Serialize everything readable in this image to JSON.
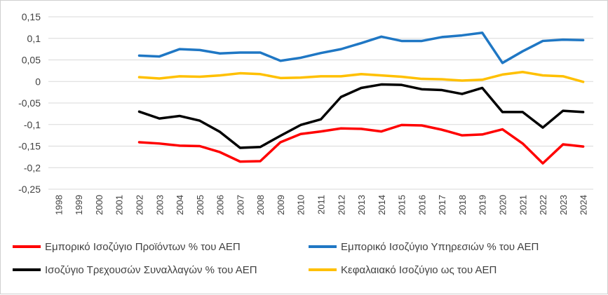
{
  "chart_data": {
    "type": "line",
    "x": [
      "1998",
      "1999",
      "2000",
      "2001",
      "2002",
      "2003",
      "2004",
      "2005",
      "2006",
      "2007",
      "2008",
      "2009",
      "2010",
      "2011",
      "2012",
      "2013",
      "2014",
      "2015",
      "2016",
      "2017",
      "2018",
      "2019",
      "2020",
      "2021",
      "2022",
      "2023",
      "2024"
    ],
    "ylim": [
      -0.25,
      0.15
    ],
    "yticks": [
      0.15,
      0.1,
      0.05,
      0,
      -0.05,
      -0.1,
      -0.15,
      -0.2,
      -0.25
    ],
    "ytick_labels": [
      "0,15",
      "0,1",
      "0,05",
      "0",
      "-0,05",
      "-0,1",
      "-0,15",
      "-0,2",
      "-0,25"
    ],
    "grid": "horizontal",
    "legend_position": "bottom",
    "series": [
      {
        "name": "Εμπορικό Ισοζύγιο Προϊόντων % του ΑΕΠ",
        "color": "#ff0000",
        "values": [
          null,
          null,
          null,
          null,
          -0.141,
          -0.144,
          -0.149,
          -0.15,
          -0.164,
          -0.186,
          -0.185,
          -0.141,
          -0.122,
          -0.116,
          -0.109,
          -0.11,
          -0.116,
          -0.101,
          -0.102,
          -0.112,
          -0.125,
          -0.123,
          -0.111,
          -0.144,
          -0.19,
          -0.146,
          -0.151
        ]
      },
      {
        "name": "Εμπορικό Ισοζύγιο Υπηρεσιών % του ΑΕΠ",
        "color": "#1f77c4",
        "values": [
          null,
          null,
          null,
          null,
          0.06,
          0.058,
          0.075,
          0.073,
          0.065,
          0.067,
          0.067,
          0.048,
          0.055,
          0.066,
          0.075,
          0.089,
          0.104,
          0.094,
          0.094,
          0.103,
          0.107,
          0.113,
          0.043,
          0.07,
          0.094,
          0.097,
          0.096
        ]
      },
      {
        "name": "Ισοζύγιο Τρεχουσών Συναλλαγών % του ΑΕΠ",
        "color": "#000000",
        "values": [
          null,
          null,
          null,
          null,
          -0.07,
          -0.086,
          -0.08,
          -0.091,
          -0.117,
          -0.154,
          -0.152,
          -0.126,
          -0.101,
          -0.088,
          -0.036,
          -0.015,
          -0.007,
          -0.008,
          -0.018,
          -0.02,
          -0.029,
          -0.015,
          -0.071,
          -0.071,
          -0.107,
          -0.068,
          -0.071
        ]
      },
      {
        "name": "Κεφαλαιακό Ισοζύγιο ως του ΑΕΠ",
        "color": "#ffc000",
        "values": [
          null,
          null,
          null,
          null,
          0.01,
          0.007,
          0.012,
          0.011,
          0.014,
          0.019,
          0.017,
          0.008,
          0.009,
          0.012,
          0.012,
          0.017,
          0.014,
          0.011,
          0.006,
          0.005,
          0.002,
          0.004,
          0.016,
          0.022,
          0.014,
          0.012,
          -0.001
        ]
      }
    ]
  }
}
